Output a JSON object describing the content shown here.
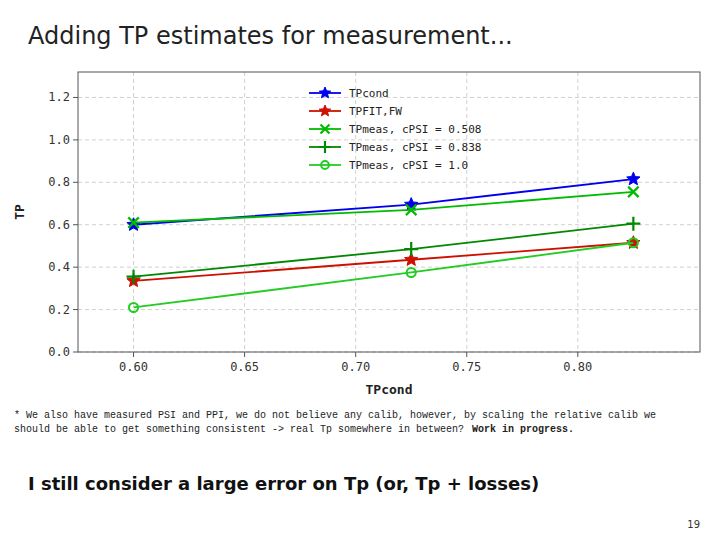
{
  "chart_data": {
    "type": "line",
    "title": "Adding TP estimates for measurement...",
    "x_label": "TPcond",
    "y_label": "TP",
    "x": [
      0.6,
      0.725,
      0.825
    ],
    "series": [
      {
        "name": "TPcond",
        "color": "#0000ee",
        "marker": "star",
        "values": [
          0.6,
          0.695,
          0.815
        ]
      },
      {
        "name": "TPFIT,FW",
        "color": "#cc1100",
        "marker": "star",
        "values": [
          0.335,
          0.435,
          0.515
        ]
      },
      {
        "name": "TPmeas, cPSI = 0.508",
        "color": "#00bb00",
        "marker": "x",
        "values": [
          0.61,
          0.67,
          0.755
        ]
      },
      {
        "name": "TPmeas, cPSI = 0.838",
        "color": "#008800",
        "marker": "plus",
        "values": [
          0.355,
          0.485,
          0.605
        ]
      },
      {
        "name": "TPmeas, cPSI = 1.0",
        "color": "#22cc22",
        "marker": "circle",
        "values": [
          0.21,
          0.375,
          0.515
        ]
      }
    ],
    "xlim": [
      0.575,
      0.855
    ],
    "ylim": [
      0,
      1.32
    ],
    "xticks": [
      {
        "value": 0.6,
        "label": "0.60"
      },
      0.65,
      {
        "value": 0.7,
        "label": "0.70"
      },
      0.75,
      {
        "value": 0.8,
        "label": "0.80"
      }
    ],
    "yticks": [
      {
        "value": 0,
        "label": "0.0"
      },
      0.2,
      0.4,
      0.6,
      0.8,
      {
        "value": 1.0,
        "label": "1.0"
      },
      1.2
    ],
    "grid": true,
    "legend": "upper center",
    "annotations": [
      "* We also have measured PSI and PPI, we do not believe any calib, however, by scaling the relative calib we",
      "should be able to get something consistent -> real Tp somewhere in between?",
      "Work in progress.",
      "I still consider a large error on Tp (or, Tp + losses)",
      "19"
    ]
  }
}
